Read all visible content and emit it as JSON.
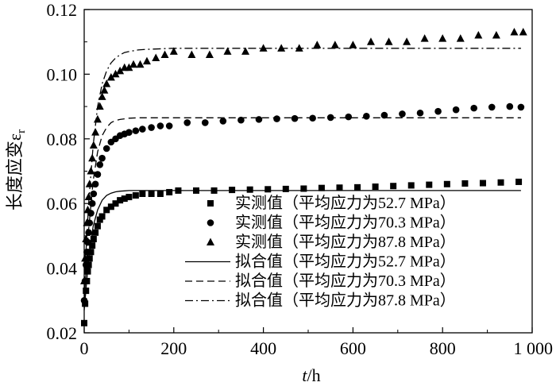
{
  "chart_data": {
    "type": "scatter",
    "x_axis": {
      "range": [
        0,
        1000
      ],
      "ticks": [
        0,
        200,
        400,
        600,
        800,
        1000
      ],
      "tick_labels": [
        "0",
        "200",
        "400",
        "600",
        "800",
        "1 000"
      ],
      "label_italic": "t",
      "label_rest": "/h"
    },
    "y_axis": {
      "range": [
        0.02,
        0.12
      ],
      "ticks": [
        0.02,
        0.04,
        0.06,
        0.08,
        0.1,
        0.12
      ],
      "tick_labels": [
        "0.02",
        "0.04",
        "0.06",
        "0.08",
        "0.10",
        "0.12"
      ],
      "label": "长度应变ε",
      "label_subscript": "r"
    },
    "grid": false,
    "legend_position": "bottom-right",
    "series": [
      {
        "name": "实测值（平均应力为52.7 MPa）",
        "kind": "measured",
        "marker": "square",
        "x": [
          0,
          2,
          4,
          6,
          8,
          10,
          12,
          15,
          18,
          21,
          25,
          30,
          35,
          40,
          50,
          60,
          70,
          80,
          90,
          100,
          115,
          130,
          150,
          170,
          190,
          210,
          250,
          290,
          330,
          370,
          410,
          450,
          490,
          530,
          570,
          610,
          650,
          690,
          730,
          770,
          810,
          850,
          890,
          930,
          970
        ],
        "y": [
          0.023,
          0.029,
          0.033,
          0.036,
          0.039,
          0.041,
          0.043,
          0.045,
          0.047,
          0.049,
          0.051,
          0.053,
          0.055,
          0.056,
          0.058,
          0.059,
          0.06,
          0.061,
          0.0615,
          0.062,
          0.0625,
          0.063,
          0.063,
          0.063,
          0.0635,
          0.064,
          0.064,
          0.064,
          0.0642,
          0.0643,
          0.0644,
          0.0645,
          0.0646,
          0.0648,
          0.0649,
          0.065,
          0.0652,
          0.0654,
          0.0656,
          0.0658,
          0.066,
          0.0662,
          0.0663,
          0.0665,
          0.0667
        ]
      },
      {
        "name": "实测值（平均应力为70.3 MPa）",
        "kind": "measured",
        "marker": "circle",
        "x": [
          0,
          2,
          4,
          6,
          8,
          10,
          12,
          15,
          18,
          21,
          25,
          30,
          35,
          40,
          50,
          60,
          70,
          80,
          90,
          100,
          115,
          130,
          150,
          170,
          190,
          230,
          270,
          310,
          350,
          390,
          430,
          470,
          510,
          550,
          590,
          630,
          670,
          710,
          750,
          790,
          830,
          870,
          910,
          950,
          975
        ],
        "y": [
          0.03,
          0.036,
          0.041,
          0.045,
          0.048,
          0.051,
          0.054,
          0.057,
          0.06,
          0.063,
          0.066,
          0.069,
          0.072,
          0.074,
          0.077,
          0.079,
          0.08,
          0.081,
          0.0815,
          0.082,
          0.0825,
          0.083,
          0.0835,
          0.084,
          0.084,
          0.085,
          0.085,
          0.0855,
          0.0858,
          0.086,
          0.0862,
          0.0863,
          0.0864,
          0.0866,
          0.0868,
          0.087,
          0.0873,
          0.0877,
          0.088,
          0.0885,
          0.089,
          0.0895,
          0.0898,
          0.09,
          0.0898
        ]
      },
      {
        "name": "实测值（平均应力为87.8 MPa）",
        "kind": "measured",
        "marker": "triangle",
        "x": [
          0,
          2,
          4,
          6,
          8,
          10,
          12,
          15,
          18,
          21,
          25,
          30,
          35,
          40,
          45,
          50,
          60,
          70,
          80,
          90,
          100,
          110,
          125,
          140,
          160,
          180,
          200,
          240,
          280,
          320,
          360,
          400,
          440,
          480,
          520,
          560,
          600,
          640,
          680,
          720,
          760,
          800,
          840,
          880,
          920,
          960,
          980
        ],
        "y": [
          0.036,
          0.043,
          0.049,
          0.054,
          0.058,
          0.062,
          0.066,
          0.07,
          0.074,
          0.078,
          0.082,
          0.086,
          0.09,
          0.093,
          0.095,
          0.097,
          0.099,
          0.1,
          0.101,
          0.102,
          0.102,
          0.103,
          0.103,
          0.104,
          0.105,
          0.106,
          0.107,
          0.106,
          0.106,
          0.107,
          0.107,
          0.108,
          0.108,
          0.108,
          0.109,
          0.109,
          0.109,
          0.11,
          0.11,
          0.11,
          0.111,
          0.111,
          0.111,
          0.112,
          0.112,
          0.113,
          0.113
        ]
      },
      {
        "name": "拟合值（平均应力为52.7 MPa）",
        "kind": "fit",
        "line_style": "solid",
        "x": [
          0,
          10,
          20,
          30,
          40,
          50,
          60,
          70,
          80,
          90,
          100,
          120,
          140,
          160,
          180,
          200,
          250,
          300,
          400,
          500,
          600,
          700,
          800,
          900,
          975
        ],
        "y": [
          0.027,
          0.043,
          0.053,
          0.058,
          0.061,
          0.0625,
          0.0632,
          0.0636,
          0.0638,
          0.0639,
          0.064,
          0.064,
          0.064,
          0.064,
          0.064,
          0.064,
          0.064,
          0.064,
          0.064,
          0.064,
          0.064,
          0.064,
          0.064,
          0.064,
          0.064
        ]
      },
      {
        "name": "拟合值（平均应力为70.3 MPa）",
        "kind": "fit",
        "line_style": "dashed",
        "x": [
          0,
          10,
          20,
          30,
          40,
          50,
          60,
          70,
          80,
          90,
          100,
          120,
          140,
          160,
          180,
          200,
          250,
          300,
          400,
          500,
          600,
          700,
          800,
          900,
          975
        ],
        "y": [
          0.03,
          0.052,
          0.067,
          0.076,
          0.081,
          0.0835,
          0.085,
          0.0857,
          0.086,
          0.0862,
          0.0864,
          0.0865,
          0.0865,
          0.0865,
          0.0865,
          0.0865,
          0.0865,
          0.0865,
          0.0865,
          0.0865,
          0.0865,
          0.0865,
          0.0865,
          0.0865,
          0.0865
        ]
      },
      {
        "name": "拟合值（平均应力为87.8 MPa）",
        "kind": "fit",
        "line_style": "dashdot",
        "x": [
          0,
          10,
          20,
          30,
          40,
          50,
          60,
          70,
          80,
          90,
          100,
          120,
          140,
          160,
          180,
          200,
          250,
          300,
          400,
          500,
          600,
          700,
          800,
          900,
          975
        ],
        "y": [
          0.035,
          0.06,
          0.078,
          0.09,
          0.097,
          0.101,
          0.1035,
          0.105,
          0.106,
          0.1067,
          0.107,
          0.1075,
          0.1077,
          0.1078,
          0.1079,
          0.108,
          0.108,
          0.108,
          0.108,
          0.108,
          0.108,
          0.108,
          0.108,
          0.108,
          0.108
        ]
      }
    ]
  }
}
